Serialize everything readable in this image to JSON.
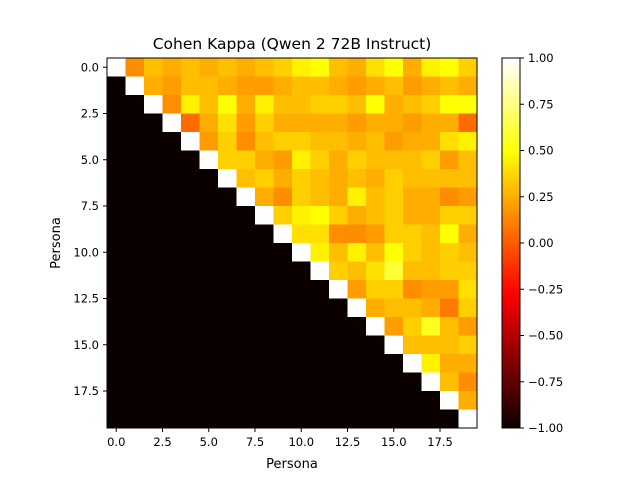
{
  "chart_data": {
    "type": "heatmap",
    "title": "Cohen Kappa (Qwen 2 72B Instruct)",
    "xlabel": "Persona",
    "ylabel": "Persona",
    "x_ticks": [
      "0.0",
      "2.5",
      "5.0",
      "7.5",
      "10.0",
      "12.5",
      "15.0",
      "17.5"
    ],
    "y_ticks": [
      "0.0",
      "2.5",
      "5.0",
      "7.5",
      "10.0",
      "12.5",
      "15.0",
      "17.5"
    ],
    "colorbar_ticks": [
      "1.00",
      "0.75",
      "0.50",
      "0.25",
      "0.00",
      "−0.25",
      "−0.50",
      "−0.75",
      "−1.00"
    ],
    "colormap": "hot",
    "vmin": -1.0,
    "vmax": 1.0,
    "size": 20,
    "values": [
      [
        1.0,
        0.15,
        0.3,
        0.25,
        0.3,
        0.25,
        0.3,
        0.25,
        0.3,
        0.35,
        0.45,
        0.5,
        0.3,
        0.25,
        0.4,
        0.5,
        0.25,
        0.45,
        0.5,
        0.35
      ],
      [
        -1.0,
        1.0,
        0.25,
        0.2,
        0.3,
        0.3,
        0.25,
        0.2,
        0.2,
        0.25,
        0.3,
        0.3,
        0.25,
        0.2,
        0.25,
        0.3,
        0.2,
        0.25,
        0.3,
        0.25
      ],
      [
        -1.0,
        -1.0,
        1.0,
        0.15,
        0.45,
        0.3,
        0.5,
        0.25,
        0.45,
        0.3,
        0.3,
        0.35,
        0.35,
        0.3,
        0.5,
        0.25,
        0.3,
        0.35,
        0.5,
        0.5
      ],
      [
        -1.0,
        -1.0,
        -1.0,
        1.0,
        0.05,
        0.25,
        0.4,
        0.2,
        0.35,
        0.25,
        0.25,
        0.25,
        0.25,
        0.2,
        0.25,
        0.25,
        0.2,
        0.25,
        0.25,
        0.05
      ],
      [
        -1.0,
        -1.0,
        -1.0,
        -1.0,
        1.0,
        0.2,
        0.35,
        0.15,
        0.3,
        0.35,
        0.35,
        0.3,
        0.3,
        0.25,
        0.3,
        0.2,
        0.25,
        0.25,
        0.4,
        0.45
      ],
      [
        -1.0,
        -1.0,
        -1.0,
        -1.0,
        -1.0,
        1.0,
        0.35,
        0.35,
        0.25,
        0.2,
        0.45,
        0.35,
        0.25,
        0.35,
        0.3,
        0.3,
        0.3,
        0.35,
        0.2,
        0.3
      ],
      [
        -1.0,
        -1.0,
        -1.0,
        -1.0,
        -1.0,
        -1.0,
        1.0,
        0.3,
        0.35,
        0.25,
        0.35,
        0.3,
        0.25,
        0.3,
        0.25,
        0.35,
        0.3,
        0.3,
        0.3,
        0.3
      ],
      [
        -1.0,
        -1.0,
        -1.0,
        -1.0,
        -1.0,
        -1.0,
        -1.0,
        1.0,
        0.25,
        0.15,
        0.35,
        0.3,
        0.25,
        0.45,
        0.3,
        0.35,
        0.25,
        0.25,
        0.15,
        0.2
      ],
      [
        -1.0,
        -1.0,
        -1.0,
        -1.0,
        -1.0,
        -1.0,
        -1.0,
        -1.0,
        1.0,
        0.35,
        0.45,
        0.5,
        0.35,
        0.25,
        0.3,
        0.35,
        0.25,
        0.25,
        0.35,
        0.35
      ],
      [
        -1.0,
        -1.0,
        -1.0,
        -1.0,
        -1.0,
        -1.0,
        -1.0,
        -1.0,
        -1.0,
        1.0,
        0.4,
        0.4,
        0.15,
        0.15,
        0.2,
        0.35,
        0.35,
        0.3,
        0.5,
        0.25
      ],
      [
        -1.0,
        -1.0,
        -1.0,
        -1.0,
        -1.0,
        -1.0,
        -1.0,
        -1.0,
        -1.0,
        -1.0,
        1.0,
        0.45,
        0.3,
        0.45,
        0.3,
        0.5,
        0.35,
        0.3,
        0.35,
        0.3
      ],
      [
        -1.0,
        -1.0,
        -1.0,
        -1.0,
        -1.0,
        -1.0,
        -1.0,
        -1.0,
        -1.0,
        -1.0,
        -1.0,
        1.0,
        0.35,
        0.3,
        0.4,
        0.6,
        0.3,
        0.3,
        0.35,
        0.35
      ],
      [
        -1.0,
        -1.0,
        -1.0,
        -1.0,
        -1.0,
        -1.0,
        -1.0,
        -1.0,
        -1.0,
        -1.0,
        -1.0,
        -1.0,
        1.0,
        0.2,
        0.35,
        0.35,
        0.15,
        0.2,
        0.2,
        0.4
      ],
      [
        -1.0,
        -1.0,
        -1.0,
        -1.0,
        -1.0,
        -1.0,
        -1.0,
        -1.0,
        -1.0,
        -1.0,
        -1.0,
        -1.0,
        -1.0,
        1.0,
        0.25,
        0.3,
        0.3,
        0.25,
        0.1,
        0.35
      ],
      [
        -1.0,
        -1.0,
        -1.0,
        -1.0,
        -1.0,
        -1.0,
        -1.0,
        -1.0,
        -1.0,
        -1.0,
        -1.0,
        -1.0,
        -1.0,
        -1.0,
        1.0,
        0.2,
        0.35,
        0.55,
        0.3,
        0.2
      ],
      [
        -1.0,
        -1.0,
        -1.0,
        -1.0,
        -1.0,
        -1.0,
        -1.0,
        -1.0,
        -1.0,
        -1.0,
        -1.0,
        -1.0,
        -1.0,
        -1.0,
        -1.0,
        1.0,
        0.3,
        0.3,
        0.3,
        0.35
      ],
      [
        -1.0,
        -1.0,
        -1.0,
        -1.0,
        -1.0,
        -1.0,
        -1.0,
        -1.0,
        -1.0,
        -1.0,
        -1.0,
        -1.0,
        -1.0,
        -1.0,
        -1.0,
        -1.0,
        1.0,
        0.45,
        0.25,
        0.25
      ],
      [
        -1.0,
        -1.0,
        -1.0,
        -1.0,
        -1.0,
        -1.0,
        -1.0,
        -1.0,
        -1.0,
        -1.0,
        -1.0,
        -1.0,
        -1.0,
        -1.0,
        -1.0,
        -1.0,
        -1.0,
        1.0,
        0.3,
        0.15
      ],
      [
        -1.0,
        -1.0,
        -1.0,
        -1.0,
        -1.0,
        -1.0,
        -1.0,
        -1.0,
        -1.0,
        -1.0,
        -1.0,
        -1.0,
        -1.0,
        -1.0,
        -1.0,
        -1.0,
        -1.0,
        -1.0,
        1.0,
        0.25
      ],
      [
        -1.0,
        -1.0,
        -1.0,
        -1.0,
        -1.0,
        -1.0,
        -1.0,
        -1.0,
        -1.0,
        -1.0,
        -1.0,
        -1.0,
        -1.0,
        -1.0,
        -1.0,
        -1.0,
        -1.0,
        -1.0,
        -1.0,
        1.0
      ]
    ]
  }
}
